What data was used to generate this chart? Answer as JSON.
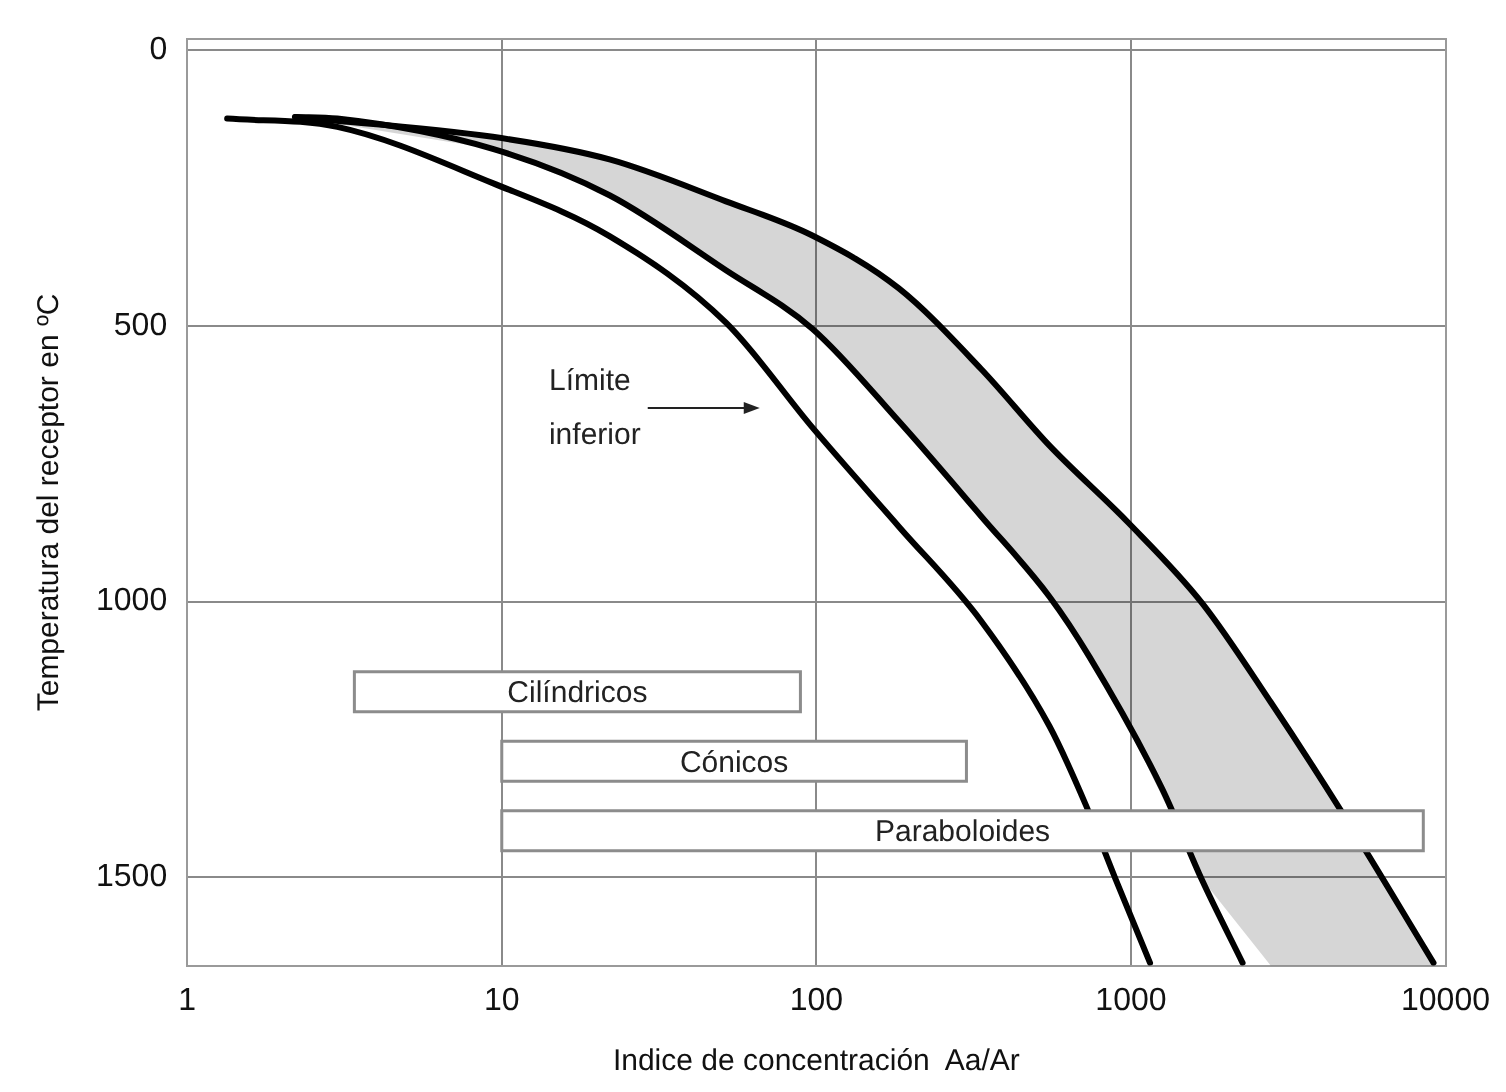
{
  "chart_data": {
    "type": "line",
    "xlabel": "Indice de concentración  Aa/Ar",
    "ylabel": "Temperatura del receptor en ºC",
    "log": "x",
    "xlim": [
      1,
      10000
    ],
    "xticks": [
      1,
      10,
      100,
      1000,
      10000
    ],
    "ylim": [
      1660,
      -20
    ],
    "yticks": [
      0,
      500,
      1000,
      1500
    ],
    "grid": true,
    "legend": false,
    "marker": "none",
    "line_style": "solid",
    "bands": [
      {
        "axis": "x",
        "from": 3.4,
        "to": 89,
        "label": "Cilíndricos",
        "color": "#ffffff"
      },
      {
        "axis": "x",
        "from": 10,
        "to": 300,
        "label": "Cónicos",
        "color": "#ffffff"
      },
      {
        "axis": "x",
        "from": 10,
        "to": 8500,
        "label": "Paraboloides",
        "color": "#ffffff"
      }
    ],
    "annotations": [
      "Límite\ninferior"
    ],
    "series": [
      {
        "type": "line",
        "color": "#000000",
        "x": [
          1.34,
          3,
          9.36,
          22,
          51.6,
          97.1,
          183,
          334,
          551,
          718,
          895,
          1150
        ],
        "values": [
          124,
          139,
          241,
          337,
          494,
          684,
          864,
          1035,
          1226,
          1368,
          1504,
          1655
        ]
      },
      {
        "type": "line",
        "color": "#000000",
        "x": [
          2.2,
          3,
          9.36,
          22,
          51.6,
          97.1,
          183,
          334,
          551,
          740,
          1256,
          1680,
          2264
        ],
        "values": [
          121,
          124,
          179,
          263,
          399,
          505,
          673,
          845,
          991,
          1101,
          1339,
          1504,
          1655
        ]
      },
      {
        "type": "line",
        "color": "#000000",
        "x": [
          2.21,
          9.36,
          22,
          51.6,
          97.1,
          183,
          334,
          551,
          978,
          1686,
          2780,
          4652,
          9160
        ],
        "values": [
          121,
          157,
          198,
          274,
          336,
          432,
          578,
          717,
          856,
          1003,
          1182,
          1379,
          1655
        ],
        "lower": [
          121,
          179,
          263,
          399,
          505,
          673,
          845,
          991,
          1226,
          1504,
          1660,
          1660,
          1660
        ],
        "upper": [
          121,
          157,
          198,
          274,
          336,
          432,
          578,
          717,
          856,
          1003,
          1182,
          1379,
          1655
        ]
      }
    ]
  }
}
